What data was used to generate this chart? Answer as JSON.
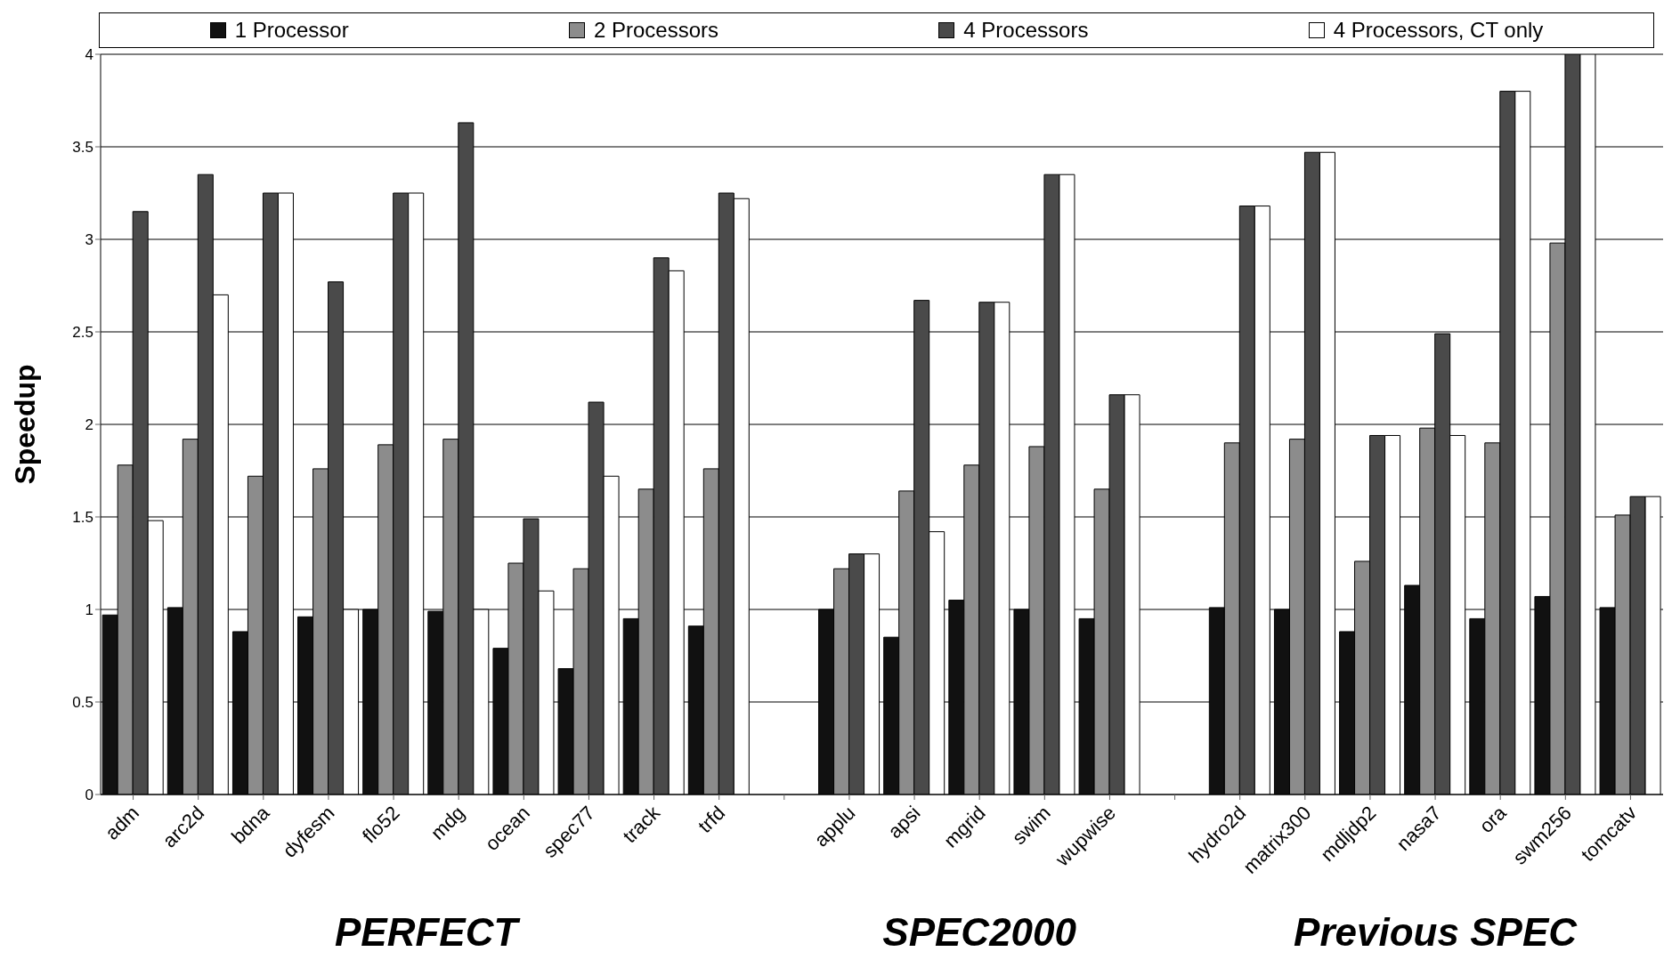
{
  "chart_data": {
    "type": "bar",
    "ylabel": "Speedup",
    "categories": [
      "adm",
      "arc2d",
      "bdna",
      "dyfesm",
      "flo52",
      "mdg",
      "ocean",
      "spec77",
      "track",
      "trfd",
      null,
      "applu",
      "apsi",
      "mgrid",
      "swim",
      "wupwise",
      null,
      "hydro2d",
      "matrix300",
      "mdljdp2",
      "nasa7",
      "ora",
      "swm256",
      "tomcatv"
    ],
    "series": [
      {
        "name": "1 Processor",
        "color": "#111111",
        "values": [
          0.97,
          1.01,
          0.88,
          0.96,
          1.0,
          0.99,
          0.79,
          0.68,
          0.95,
          0.91,
          null,
          1.0,
          0.85,
          1.05,
          1.0,
          0.95,
          null,
          1.01,
          1.0,
          0.88,
          1.13,
          0.95,
          1.07,
          1.01
        ]
      },
      {
        "name": "2 Processors",
        "color": "#8c8c8c",
        "values": [
          1.78,
          1.92,
          1.72,
          1.76,
          1.89,
          1.92,
          1.25,
          1.22,
          1.65,
          1.76,
          null,
          1.22,
          1.64,
          1.78,
          1.88,
          1.65,
          null,
          1.9,
          1.92,
          1.26,
          1.98,
          1.9,
          2.98,
          1.51
        ]
      },
      {
        "name": "4 Processors",
        "color": "#4a4a4a",
        "values": [
          3.15,
          3.35,
          3.25,
          2.77,
          3.25,
          3.63,
          1.49,
          2.12,
          2.9,
          3.25,
          null,
          1.3,
          2.67,
          2.66,
          3.35,
          2.16,
          null,
          3.18,
          3.47,
          1.94,
          2.49,
          3.8,
          4.0,
          1.61
        ]
      },
      {
        "name": "4 Processors, CT only",
        "color": "#ffffff",
        "values": [
          1.48,
          2.7,
          3.25,
          1.0,
          3.25,
          1.0,
          1.1,
          1.72,
          2.83,
          3.22,
          null,
          1.3,
          1.42,
          2.66,
          3.35,
          2.16,
          null,
          3.18,
          3.47,
          1.94,
          1.94,
          3.8,
          4.0,
          1.61
        ]
      }
    ],
    "ylim": [
      0,
      4
    ],
    "yticks": [
      0,
      0.5,
      1,
      1.5,
      2,
      2.5,
      3,
      3.5,
      4
    ],
    "grid": "y",
    "legend": "top",
    "annotations": [
      "PERFECT",
      "SPEC2000",
      "Previous SPEC"
    ]
  }
}
